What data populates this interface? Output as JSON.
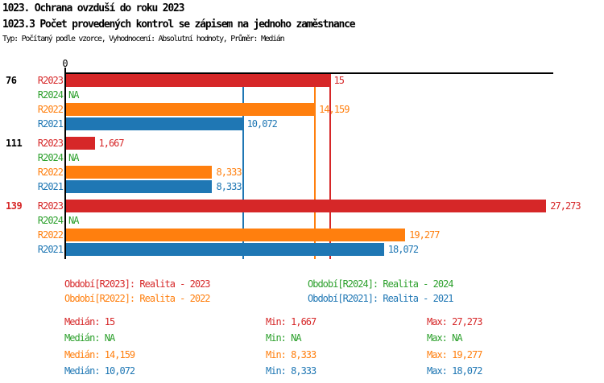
{
  "title": {
    "line1": "1023. Ochrana ovzduší do roku 2023",
    "line2": "1023.3 Počet provedených kontrol se zápisem na jednoho zaměstnance",
    "line3": "Typ: Počítaný podle vzorce, Vyhodnocení: Absolutní hodnoty, Průměr: Medián"
  },
  "colors": {
    "r2023_red": "#d62728",
    "r2024_green": "#2ca02c",
    "r2022_orange": "#ff7f0e",
    "r2021_blue": "#1f77b4",
    "axis_black": "#000000",
    "background": "#ffffff"
  },
  "chart_data": {
    "type": "bar",
    "orientation": "horizontal",
    "title": "1023.3 Počet provedených kontrol se zápisem na jednoho zaměstnance",
    "x_axis": {
      "zero_label": "0",
      "min": 0,
      "max_visible": 27.7,
      "number_format": "czech decimal comma"
    },
    "series_order": [
      "R2023",
      "R2024",
      "R2022",
      "R2021"
    ],
    "groups": [
      {
        "label": "76",
        "label_color": "#000000",
        "rows": [
          {
            "series": "R2023",
            "value": 15,
            "display": "15",
            "color": "#d62728"
          },
          {
            "series": "R2024",
            "value": null,
            "display": "NA",
            "color": "#2ca02c"
          },
          {
            "series": "R2022",
            "value": 14.159,
            "display": "14,159",
            "color": "#ff7f0e"
          },
          {
            "series": "R2021",
            "value": 10.072,
            "display": "10,072",
            "color": "#1f77b4"
          }
        ]
      },
      {
        "label": "111",
        "label_color": "#000000",
        "rows": [
          {
            "series": "R2023",
            "value": 1.667,
            "display": "1,667",
            "color": "#d62728"
          },
          {
            "series": "R2024",
            "value": null,
            "display": "NA",
            "color": "#2ca02c"
          },
          {
            "series": "R2022",
            "value": 8.333,
            "display": "8,333",
            "color": "#ff7f0e"
          },
          {
            "series": "R2021",
            "value": 8.333,
            "display": "8,333",
            "color": "#1f77b4"
          }
        ]
      },
      {
        "label": "139",
        "label_color": "#d62728",
        "rows": [
          {
            "series": "R2023",
            "value": 27.273,
            "display": "27,273",
            "color": "#d62728"
          },
          {
            "series": "R2024",
            "value": null,
            "display": "NA",
            "color": "#2ca02c"
          },
          {
            "series": "R2022",
            "value": 19.277,
            "display": "19,277",
            "color": "#ff7f0e"
          },
          {
            "series": "R2021",
            "value": 18.072,
            "display": "18,072",
            "color": "#1f77b4"
          }
        ]
      }
    ],
    "median_lines": [
      {
        "series": "R2021",
        "value": 10.072,
        "color": "#1f77b4"
      },
      {
        "series": "R2022",
        "value": 14.159,
        "color": "#ff7f0e"
      },
      {
        "series": "R2023",
        "value": 15,
        "color": "#d62728"
      }
    ]
  },
  "legend": {
    "items": [
      {
        "text": "Období[R2023]: Realita - 2023",
        "color": "#d62728"
      },
      {
        "text": "Období[R2024]: Realita - 2024",
        "color": "#2ca02c"
      },
      {
        "text": "Období[R2022]: Realita - 2022",
        "color": "#ff7f0e"
      },
      {
        "text": "Období[R2021]: Realita - 2021",
        "color": "#1f77b4"
      }
    ]
  },
  "stats": {
    "rows": [
      {
        "color": "#d62728",
        "cells": [
          "Medián: 15",
          "Min: 1,667",
          "Max: 27,273"
        ]
      },
      {
        "color": "#2ca02c",
        "cells": [
          "Medián: NA",
          "Min: NA",
          "Max: NA"
        ]
      },
      {
        "color": "#ff7f0e",
        "cells": [
          "Medián: 14,159",
          "Min: 8,333",
          "Max: 19,277"
        ]
      },
      {
        "color": "#1f77b4",
        "cells": [
          "Medián: 10,072",
          "Min: 8,333",
          "Max: 18,072"
        ]
      }
    ]
  }
}
